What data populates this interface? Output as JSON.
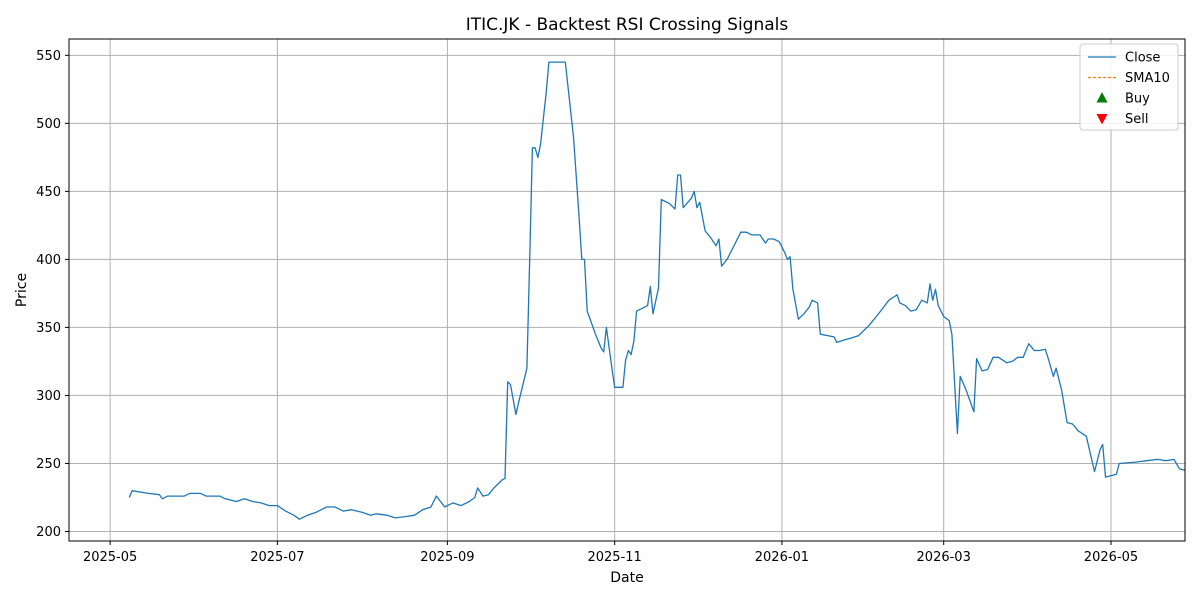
{
  "chart_data": {
    "type": "line",
    "title": "ITIC.JK - Backtest RSI Crossing Signals",
    "xlabel": "Date",
    "ylabel": "Price",
    "xlim": [
      "2025-04-16",
      "2026-05-28"
    ],
    "ylim": [
      193,
      562
    ],
    "x_ticks": [
      "2025-05",
      "2025-07",
      "2025-09",
      "2025-11",
      "2026-01",
      "2026-03",
      "2026-05"
    ],
    "y_ticks": [
      200,
      250,
      300,
      350,
      400,
      450,
      500,
      550
    ],
    "grid": true,
    "legend_position": "top-right",
    "legend": [
      {
        "name": "Close",
        "style": "line",
        "color": "#1f77b4"
      },
      {
        "name": "SMA10",
        "style": "dashed",
        "color": "#ff7f0e"
      },
      {
        "name": "Buy",
        "style": "triangle-up",
        "color": "#008000"
      },
      {
        "name": "Sell",
        "style": "triangle-down",
        "color": "#ff0000"
      }
    ],
    "series": [
      {
        "name": "Close",
        "points": [
          [
            "2025-05-08",
            225
          ],
          [
            "2025-05-09",
            230
          ],
          [
            "2025-05-15",
            228
          ],
          [
            "2025-05-19",
            227
          ],
          [
            "2025-05-20",
            224
          ],
          [
            "2025-05-22",
            226
          ],
          [
            "2025-05-28",
            226
          ],
          [
            "2025-05-30",
            228
          ],
          [
            "2025-06-03",
            228
          ],
          [
            "2025-06-05",
            226
          ],
          [
            "2025-06-10",
            226
          ],
          [
            "2025-06-12",
            224
          ],
          [
            "2025-06-16",
            222
          ],
          [
            "2025-06-19",
            224
          ],
          [
            "2025-06-22",
            222
          ],
          [
            "2025-06-25",
            221
          ],
          [
            "2025-06-28",
            219
          ],
          [
            "2025-07-01",
            219
          ],
          [
            "2025-07-04",
            215
          ],
          [
            "2025-07-07",
            212
          ],
          [
            "2025-07-09",
            209
          ],
          [
            "2025-07-12",
            212
          ],
          [
            "2025-07-15",
            214
          ],
          [
            "2025-07-19",
            218
          ],
          [
            "2025-07-22",
            218
          ],
          [
            "2025-07-25",
            215
          ],
          [
            "2025-07-28",
            216
          ],
          [
            "2025-08-01",
            214
          ],
          [
            "2025-08-04",
            212
          ],
          [
            "2025-08-06",
            213
          ],
          [
            "2025-08-10",
            212
          ],
          [
            "2025-08-13",
            210
          ],
          [
            "2025-08-17",
            211
          ],
          [
            "2025-08-20",
            212
          ],
          [
            "2025-08-23",
            216
          ],
          [
            "2025-08-26",
            218
          ],
          [
            "2025-08-28",
            226
          ],
          [
            "2025-08-31",
            218
          ],
          [
            "2025-09-03",
            221
          ],
          [
            "2025-09-06",
            219
          ],
          [
            "2025-09-09",
            222
          ],
          [
            "2025-09-11",
            225
          ],
          [
            "2025-09-12",
            232
          ],
          [
            "2025-09-14",
            226
          ],
          [
            "2025-09-16",
            227
          ],
          [
            "2025-09-18",
            232
          ],
          [
            "2025-09-20",
            236
          ],
          [
            "2025-09-21",
            238
          ],
          [
            "2025-09-22",
            239
          ],
          [
            "2025-09-23",
            310
          ],
          [
            "2025-09-24",
            308
          ],
          [
            "2025-09-26",
            286
          ],
          [
            "2025-09-27",
            295
          ],
          [
            "2025-09-30",
            320
          ],
          [
            "2025-10-01",
            400
          ],
          [
            "2025-10-02",
            482
          ],
          [
            "2025-10-03",
            482
          ],
          [
            "2025-10-04",
            475
          ],
          [
            "2025-10-05",
            485
          ],
          [
            "2025-10-07",
            522
          ],
          [
            "2025-10-08",
            545
          ],
          [
            "2025-10-10",
            545
          ],
          [
            "2025-10-14",
            545
          ],
          [
            "2025-10-17",
            490
          ],
          [
            "2025-10-19",
            432
          ],
          [
            "2025-10-20",
            400
          ],
          [
            "2025-10-21",
            400
          ],
          [
            "2025-10-22",
            362
          ],
          [
            "2025-10-25",
            345
          ],
          [
            "2025-10-27",
            335
          ],
          [
            "2025-10-28",
            332
          ],
          [
            "2025-10-29",
            350
          ],
          [
            "2025-10-31",
            320
          ],
          [
            "2025-11-01",
            306
          ],
          [
            "2025-11-04",
            306
          ],
          [
            "2025-11-05",
            326
          ],
          [
            "2025-11-06",
            333
          ],
          [
            "2025-11-07",
            330
          ],
          [
            "2025-11-08",
            340
          ],
          [
            "2025-11-09",
            362
          ],
          [
            "2025-11-11",
            364
          ],
          [
            "2025-11-13",
            366
          ],
          [
            "2025-11-14",
            380
          ],
          [
            "2025-11-15",
            360
          ],
          [
            "2025-11-17",
            379
          ],
          [
            "2025-11-18",
            444
          ],
          [
            "2025-11-21",
            441
          ],
          [
            "2025-11-23",
            437
          ],
          [
            "2025-11-24",
            462
          ],
          [
            "2025-11-25",
            462
          ],
          [
            "2025-11-26",
            438
          ],
          [
            "2025-11-29",
            445
          ],
          [
            "2025-11-30",
            450
          ],
          [
            "2025-12-01",
            438
          ],
          [
            "2025-12-02",
            442
          ],
          [
            "2025-12-04",
            421
          ],
          [
            "2025-12-06",
            416
          ],
          [
            "2025-12-08",
            410
          ],
          [
            "2025-12-09",
            415
          ],
          [
            "2025-12-10",
            395
          ],
          [
            "2025-12-12",
            400
          ],
          [
            "2025-12-14",
            408
          ],
          [
            "2025-12-17",
            420
          ],
          [
            "2025-12-19",
            420
          ],
          [
            "2025-12-21",
            418
          ],
          [
            "2025-12-24",
            418
          ],
          [
            "2025-12-26",
            412
          ],
          [
            "2025-12-27",
            415
          ],
          [
            "2025-12-29",
            415
          ],
          [
            "2025-12-31",
            413
          ],
          [
            "2026-01-02",
            405
          ],
          [
            "2026-01-03",
            400
          ],
          [
            "2026-01-04",
            402
          ],
          [
            "2026-01-05",
            378
          ],
          [
            "2026-01-07",
            356
          ],
          [
            "2026-01-09",
            360
          ],
          [
            "2026-01-11",
            365
          ],
          [
            "2026-01-12",
            370
          ],
          [
            "2026-01-14",
            368
          ],
          [
            "2026-01-15",
            345
          ],
          [
            "2026-01-20",
            343
          ],
          [
            "2026-01-21",
            339
          ],
          [
            "2026-01-24",
            341
          ],
          [
            "2026-01-26",
            342
          ],
          [
            "2026-01-29",
            344
          ],
          [
            "2026-02-02",
            352
          ],
          [
            "2026-02-04",
            357
          ],
          [
            "2026-02-06",
            362
          ],
          [
            "2026-02-09",
            370
          ],
          [
            "2026-02-12",
            374
          ],
          [
            "2026-02-13",
            368
          ],
          [
            "2026-02-15",
            366
          ],
          [
            "2026-02-17",
            362
          ],
          [
            "2026-02-19",
            363
          ],
          [
            "2026-02-21",
            370
          ],
          [
            "2026-02-23",
            368
          ],
          [
            "2026-02-24",
            382
          ],
          [
            "2026-02-25",
            370
          ],
          [
            "2026-02-26",
            378
          ],
          [
            "2026-02-27",
            366
          ],
          [
            "2026-03-01",
            358
          ],
          [
            "2026-03-03",
            355
          ],
          [
            "2026-03-04",
            345
          ],
          [
            "2026-03-06",
            272
          ],
          [
            "2026-03-07",
            314
          ],
          [
            "2026-03-09",
            305
          ],
          [
            "2026-03-12",
            288
          ],
          [
            "2026-03-13",
            327
          ],
          [
            "2026-03-15",
            318
          ],
          [
            "2026-03-17",
            319
          ],
          [
            "2026-03-19",
            328
          ],
          [
            "2026-03-21",
            328
          ],
          [
            "2026-03-24",
            324
          ],
          [
            "2026-03-26",
            325
          ],
          [
            "2026-03-28",
            328
          ],
          [
            "2026-03-30",
            328
          ],
          [
            "2026-04-01",
            338
          ],
          [
            "2026-04-03",
            333
          ],
          [
            "2026-04-05",
            333
          ],
          [
            "2026-04-07",
            334
          ],
          [
            "2026-04-08",
            328
          ],
          [
            "2026-04-10",
            314
          ],
          [
            "2026-04-11",
            320
          ],
          [
            "2026-04-13",
            304
          ],
          [
            "2026-04-15",
            280
          ],
          [
            "2026-04-17",
            279
          ],
          [
            "2026-04-19",
            274
          ],
          [
            "2026-04-22",
            270
          ],
          [
            "2026-04-25",
            244
          ],
          [
            "2026-04-27",
            260
          ],
          [
            "2026-04-28",
            264
          ],
          [
            "2026-04-29",
            240
          ],
          [
            "2026-05-03",
            242
          ],
          [
            "2026-05-04",
            250
          ],
          [
            "2026-05-10",
            251
          ],
          [
            "2026-05-14",
            252
          ],
          [
            "2026-05-18",
            253
          ],
          [
            "2026-05-21",
            252
          ],
          [
            "2026-05-24",
            253
          ],
          [
            "2026-05-26",
            246
          ],
          [
            "2026-05-28",
            245
          ]
        ]
      }
    ]
  }
}
